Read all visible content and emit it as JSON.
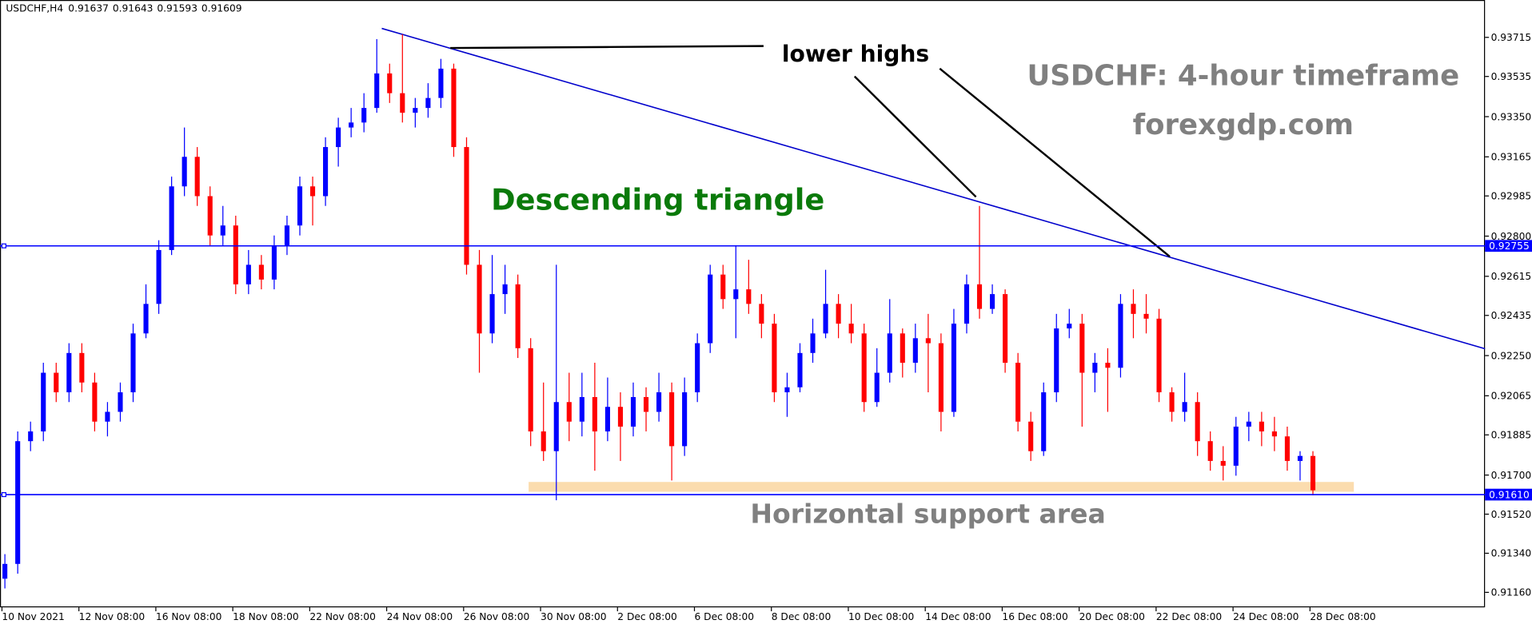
{
  "chart_data": {
    "type": "candlestick",
    "symbol": "USDCHF,H4",
    "header_values": [
      0.91637,
      0.91643,
      0.91593,
      0.91609
    ],
    "title": "USDCHF: 4-hour timeframe",
    "subtitle": "forexgdp.com",
    "annotations": {
      "pattern": "Descending triangle",
      "highs": "lower highs",
      "support": "Horizontal support area"
    },
    "up_color": "#0000ff",
    "down_color": "#ff0000",
    "open": [
      0.91223,
      0.91291,
      0.91856,
      0.91901,
      0.92171,
      0.92081,
      0.92262,
      0.92126,
      0.91946,
      0.91991,
      0.92081,
      0.92352,
      0.92488,
      0.92736,
      0.93029,
      0.93165,
      0.92984,
      0.92803,
      0.92849,
      0.92578,
      0.92668,
      0.926,
      0.92758,
      0.92849,
      0.93029,
      0.92984,
      0.9321,
      0.933,
      0.93323,
      0.9339,
      0.93549,
      0.93458,
      0.93368,
      0.9339,
      0.93436,
      0.93571,
      0.9321,
      0.92668,
      0.92352,
      0.92533,
      0.92578,
      0.92284,
      0.91901,
      0.9181,
      0.92036,
      0.91946,
      0.92059,
      0.91901,
      0.92014,
      0.91923,
      0.92059,
      0.91991,
      0.92081,
      0.91833,
      0.92081,
      0.92307,
      0.92623,
      0.9251,
      0.92555,
      0.92488,
      0.92397,
      0.92081,
      0.92104,
      0.92262,
      0.92352,
      0.92488,
      0.92397,
      0.92352,
      0.92036,
      0.92171,
      0.92352,
      0.92217,
      0.9233,
      0.92307,
      0.91991,
      0.92397,
      0.92578,
      0.92465,
      0.92533,
      0.92217,
      0.91946,
      0.9181,
      0.92081,
      0.92375,
      0.92397,
      0.92171,
      0.92217,
      0.92194,
      0.92488,
      0.92442,
      0.9242,
      0.92081,
      0.91991,
      0.92036,
      0.91856,
      0.91765,
      0.91743,
      0.91923,
      0.91946,
      0.91901,
      0.91878,
      0.91765,
      0.91788
    ],
    "high": [
      0.91336,
      0.91901,
      0.91946,
      0.92217,
      0.92217,
      0.92307,
      0.92307,
      0.92171,
      0.92036,
      0.92126,
      0.92397,
      0.92578,
      0.92781,
      0.93074,
      0.933,
      0.9321,
      0.93029,
      0.92939,
      0.92894,
      0.92736,
      0.92713,
      0.92803,
      0.92894,
      0.93074,
      0.93074,
      0.93255,
      0.93345,
      0.9339,
      0.93458,
      0.93707,
      0.93594,
      0.93729,
      0.93436,
      0.93504,
      0.93616,
      0.93594,
      0.93255,
      0.92736,
      0.92713,
      0.92668,
      0.92623,
      0.9233,
      0.92126,
      0.92668,
      0.92171,
      0.92171,
      0.92217,
      0.92149,
      0.92081,
      0.92126,
      0.92104,
      0.92171,
      0.92126,
      0.92149,
      0.92352,
      0.92668,
      0.92668,
      0.92758,
      0.92691,
      0.92533,
      0.92442,
      0.92171,
      0.92307,
      0.9242,
      0.92645,
      0.92533,
      0.92488,
      0.92397,
      0.92284,
      0.9251,
      0.92375,
      0.92397,
      0.92442,
      0.92352,
      0.92465,
      0.92623,
      0.92939,
      0.92578,
      0.92555,
      0.92262,
      0.91991,
      0.92126,
      0.92442,
      0.92465,
      0.92442,
      0.92262,
      0.92284,
      0.92533,
      0.92555,
      0.92533,
      0.92465,
      0.92104,
      0.92171,
      0.92081,
      0.91901,
      0.91833,
      0.91968,
      0.91991,
      0.91991,
      0.91968,
      0.91923,
      0.9181,
      0.9181
    ],
    "low": [
      0.91178,
      0.91246,
      0.9181,
      0.91856,
      0.92036,
      0.92036,
      0.92081,
      0.91901,
      0.91878,
      0.91946,
      0.92036,
      0.9233,
      0.92442,
      0.92713,
      0.92984,
      0.92939,
      0.92758,
      0.92758,
      0.92533,
      0.92533,
      0.92555,
      0.92555,
      0.92713,
      0.92803,
      0.92849,
      0.92939,
      0.9312,
      0.93255,
      0.93278,
      0.93368,
      0.93413,
      0.93323,
      0.933,
      0.93345,
      0.9339,
      0.93165,
      0.92623,
      0.92171,
      0.92307,
      0.92442,
      0.92239,
      0.91833,
      0.91765,
      0.91584,
      0.91856,
      0.91878,
      0.9172,
      0.91856,
      0.91765,
      0.91878,
      0.91901,
      0.91946,
      0.91675,
      0.91788,
      0.92036,
      0.92262,
      0.92465,
      0.9233,
      0.92442,
      0.9233,
      0.92036,
      0.91968,
      0.92081,
      0.92217,
      0.9233,
      0.9233,
      0.92307,
      0.91991,
      0.92014,
      0.92126,
      0.92149,
      0.92171,
      0.92081,
      0.91901,
      0.91968,
      0.92352,
      0.9242,
      0.92442,
      0.92171,
      0.91901,
      0.91765,
      0.91788,
      0.92036,
      0.9233,
      0.91923,
      0.92081,
      0.91991,
      0.92149,
      0.9233,
      0.92352,
      0.92036,
      0.91946,
      0.91946,
      0.91788,
      0.9172,
      0.91675,
      0.91697,
      0.91856,
      0.91833,
      0.9181,
      0.9172,
      0.91675,
      0.91607
    ],
    "close": [
      0.91291,
      0.91856,
      0.91901,
      0.92171,
      0.92081,
      0.92262,
      0.92126,
      0.91946,
      0.91991,
      0.92081,
      0.92352,
      0.92488,
      0.92736,
      0.93029,
      0.93165,
      0.92984,
      0.92803,
      0.92849,
      0.92578,
      0.92668,
      0.926,
      0.92758,
      0.92849,
      0.93029,
      0.92984,
      0.9321,
      0.933,
      0.93323,
      0.9339,
      0.93549,
      0.93458,
      0.93368,
      0.9339,
      0.93436,
      0.93571,
      0.9321,
      0.92668,
      0.92352,
      0.92533,
      0.92578,
      0.92284,
      0.91901,
      0.9181,
      0.92036,
      0.91946,
      0.92059,
      0.91901,
      0.92014,
      0.91923,
      0.92059,
      0.91991,
      0.92081,
      0.91833,
      0.92081,
      0.92307,
      0.92623,
      0.9251,
      0.92555,
      0.92488,
      0.92397,
      0.92081,
      0.92104,
      0.92262,
      0.92352,
      0.92488,
      0.92397,
      0.92352,
      0.92036,
      0.92171,
      0.92352,
      0.92217,
      0.9233,
      0.92307,
      0.91991,
      0.92397,
      0.92578,
      0.92465,
      0.92533,
      0.92217,
      0.91946,
      0.9181,
      0.92081,
      0.92375,
      0.92397,
      0.92171,
      0.92217,
      0.92194,
      0.92488,
      0.92442,
      0.9242,
      0.92081,
      0.91991,
      0.92036,
      0.91856,
      0.91765,
      0.91743,
      0.91923,
      0.91946,
      0.91901,
      0.91878,
      0.91765,
      0.91788,
      0.9163
    ],
    "levels": [
      {
        "value": 0.92755,
        "label": "0.92755"
      },
      {
        "value": 0.9161,
        "label": "0.91610"
      }
    ],
    "level_color": "#0000ff",
    "ylim": [
      0.91091,
      0.93887
    ],
    "yticks": [
      0.93715,
      0.93535,
      {
        "value": 0.9335,
        "label": "0.93350"
      },
      0.93165,
      0.92985,
      {
        "value": 0.928,
        "label": "0.92800"
      },
      0.92615,
      0.92435,
      {
        "value": 0.9225,
        "label": "0.92250"
      },
      0.92065,
      0.91885,
      {
        "value": 0.917,
        "label": "0.91700"
      },
      {
        "value": 0.9152,
        "label": "0.91520"
      },
      {
        "value": 0.9134,
        "label": "0.91340"
      },
      {
        "value": 0.9116,
        "label": "0.91160"
      }
    ],
    "xticks": [
      {
        "value": 0,
        "label": "10 Nov 2021"
      },
      {
        "value": 6,
        "label": "12 Nov 08:00"
      },
      {
        "value": 12,
        "label": "16 Nov 08:00"
      },
      {
        "value": 18,
        "label": "18 Nov 08:00"
      },
      {
        "value": 24,
        "label": "22 Nov 08:00"
      },
      {
        "value": 30,
        "label": "24 Nov 08:00"
      },
      {
        "value": 36,
        "label": "26 Nov 08:00"
      },
      {
        "value": 42,
        "label": "30 Nov 08:00"
      },
      {
        "value": 48,
        "label": "2 Dec 08:00"
      },
      {
        "value": 54,
        "label": "6 Dec 08:00"
      },
      {
        "value": 60,
        "label": "8 Dec 08:00"
      },
      {
        "value": 66,
        "label": "10 Dec 08:00"
      },
      {
        "value": 72,
        "label": "14 Dec 08:00"
      },
      {
        "value": 78,
        "label": "16 Dec 08:00"
      },
      {
        "value": 84,
        "label": "20 Dec 08:00"
      },
      {
        "value": 90,
        "label": "22 Dec 08:00"
      },
      {
        "value": 96,
        "label": "24 Dec 08:00"
      },
      {
        "value": 102,
        "label": "28 Dec 08:00"
      }
    ]
  }
}
